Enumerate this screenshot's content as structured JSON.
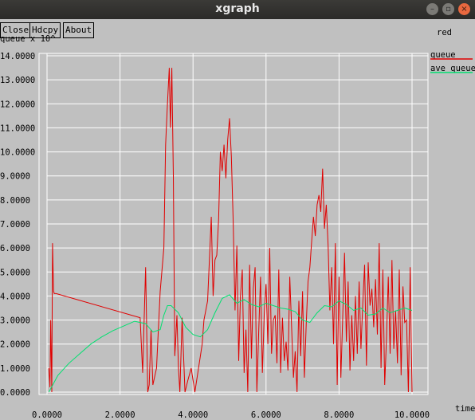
{
  "window": {
    "title": "xgraph"
  },
  "toolbar": {
    "close_label": "Close",
    "hdcpy_label": "Hdcpy",
    "about_label": "About"
  },
  "plot": {
    "title": "red",
    "y_label": "queue x 10^",
    "x_label": "time",
    "legend": [
      {
        "name": "queue",
        "color": "#e00000"
      },
      {
        "name": "ave_queue",
        "color": "#00e070"
      }
    ],
    "colors": {
      "background": "#c0c0c0",
      "grid": "#ffffff"
    }
  },
  "chart_data": {
    "type": "line",
    "xlim": [
      0,
      10
    ],
    "ylim": [
      0,
      14
    ],
    "x_ticks": [
      "0.0000",
      "2.0000",
      "4.0000",
      "6.0000",
      "8.0000",
      "10.0000"
    ],
    "y_ticks": [
      "0.0000",
      "1.0000",
      "2.0000",
      "3.0000",
      "4.0000",
      "5.0000",
      "6.0000",
      "7.0000",
      "8.0000",
      "9.0000",
      "10.0000",
      "11.0000",
      "12.0000",
      "13.0000",
      "14.0000"
    ],
    "series": [
      {
        "name": "queue",
        "color": "#e00000",
        "x": [
          0.05,
          0.08,
          0.1,
          0.13,
          0.15,
          0.18,
          0.2,
          0.22,
          0.25,
          2.55,
          2.62,
          2.7,
          2.76,
          2.8,
          2.85,
          2.9,
          3.0,
          3.1,
          3.2,
          3.25,
          3.3,
          3.35,
          3.38,
          3.42,
          3.46,
          3.5,
          3.52,
          3.56,
          3.6,
          3.64,
          3.7,
          3.78,
          3.86,
          3.95,
          4.05,
          4.15,
          4.25,
          4.3,
          4.4,
          4.5,
          4.55,
          4.6,
          4.65,
          4.7,
          4.75,
          4.8,
          4.85,
          4.9,
          4.95,
          5.0,
          5.05,
          5.1,
          5.15,
          5.2,
          5.25,
          5.3,
          5.35,
          5.4,
          5.45,
          5.5,
          5.55,
          5.6,
          5.65,
          5.7,
          5.75,
          5.8,
          5.85,
          5.9,
          5.95,
          6.0,
          6.05,
          6.1,
          6.15,
          6.2,
          6.25,
          6.3,
          6.35,
          6.4,
          6.45,
          6.5,
          6.55,
          6.6,
          6.65,
          6.7,
          6.75,
          6.8,
          6.85,
          6.9,
          6.95,
          7.0,
          7.05,
          7.1,
          7.15,
          7.2,
          7.25,
          7.3,
          7.35,
          7.4,
          7.45,
          7.5,
          7.55,
          7.6,
          7.65,
          7.7,
          7.75,
          7.8,
          7.85,
          7.9,
          7.95,
          8.0,
          8.05,
          8.1,
          8.15,
          8.2,
          8.25,
          8.3,
          8.35,
          8.4,
          8.45,
          8.5,
          8.55,
          8.6,
          8.65,
          8.7,
          8.75,
          8.8,
          8.85,
          8.9,
          8.95,
          9.0,
          9.05,
          9.1,
          9.15,
          9.2,
          9.25,
          9.3,
          9.35,
          9.4,
          9.45,
          9.5,
          9.55,
          9.6,
          9.65,
          9.7,
          9.75,
          9.8,
          9.85,
          9.9,
          9.95,
          10.0
        ],
        "y": [
          1.0,
          0.2,
          3.0,
          0.0,
          6.2,
          4.2,
          4.1,
          4.1,
          4.1,
          3.1,
          0.8,
          5.2,
          0.0,
          0.3,
          2.6,
          0.3,
          1.0,
          4.2,
          6.0,
          10.3,
          12.0,
          13.5,
          11.0,
          13.5,
          9.0,
          1.5,
          2.0,
          3.2,
          1.0,
          0.0,
          3.1,
          0.0,
          0.5,
          1.0,
          0.0,
          1.0,
          2.0,
          3.0,
          3.8,
          7.3,
          4.0,
          5.5,
          5.7,
          7.2,
          10.0,
          9.2,
          10.3,
          8.9,
          10.5,
          11.4,
          9.8,
          7.1,
          3.4,
          6.1,
          1.3,
          4.0,
          5.1,
          0.8,
          2.6,
          0.0,
          5.3,
          1.4,
          4.3,
          5.2,
          0.0,
          2.5,
          4.8,
          0.8,
          3.2,
          4.5,
          2.0,
          6.0,
          1.6,
          3.0,
          3.2,
          1.2,
          5.1,
          0.8,
          3.1,
          1.3,
          2.1,
          0.9,
          4.8,
          2.7,
          0.6,
          1.7,
          0.0,
          3.8,
          1.5,
          4.2,
          0.6,
          2.8,
          4.6,
          5.2,
          6.3,
          7.3,
          6.5,
          7.8,
          8.2,
          7.5,
          9.3,
          6.8,
          7.8,
          6.1,
          3.4,
          5.2,
          2.0,
          6.2,
          0.3,
          4.8,
          0.6,
          3.1,
          5.8,
          2.1,
          4.6,
          0.9,
          3.2,
          1.3,
          4.0,
          1.6,
          4.6,
          1.8,
          3.7,
          5.3,
          1.1,
          5.4,
          3.6,
          4.3,
          2.7,
          4.7,
          2.4,
          6.2,
          1.0,
          5.1,
          0.3,
          2.2,
          4.8,
          1.6,
          5.5,
          1.8,
          3.4,
          1.2,
          5.1,
          0.7,
          4.4,
          2.9,
          3.0,
          0.0,
          5.2,
          0.0
        ]
      },
      {
        "name": "ave_queue",
        "color": "#00e070",
        "x": [
          0.05,
          0.3,
          0.6,
          0.9,
          1.2,
          1.5,
          1.8,
          2.1,
          2.4,
          2.7,
          2.9,
          3.1,
          3.2,
          3.3,
          3.4,
          3.6,
          3.8,
          4.0,
          4.2,
          4.4,
          4.6,
          4.8,
          5.0,
          5.2,
          5.4,
          5.6,
          5.8,
          6.0,
          6.2,
          6.4,
          6.6,
          6.8,
          7.0,
          7.2,
          7.4,
          7.6,
          7.8,
          8.0,
          8.2,
          8.4,
          8.6,
          8.8,
          9.0,
          9.2,
          9.4,
          9.6,
          9.8,
          10.0
        ],
        "y": [
          0.0,
          0.7,
          1.2,
          1.6,
          2.0,
          2.3,
          2.55,
          2.75,
          2.95,
          2.85,
          2.5,
          2.6,
          3.2,
          3.6,
          3.6,
          3.3,
          2.7,
          2.4,
          2.3,
          2.6,
          3.3,
          3.9,
          4.05,
          3.7,
          3.85,
          3.65,
          3.55,
          3.7,
          3.6,
          3.5,
          3.45,
          3.35,
          3.0,
          2.9,
          3.3,
          3.6,
          3.55,
          3.8,
          3.65,
          3.4,
          3.5,
          3.2,
          3.25,
          3.5,
          3.3,
          3.4,
          3.5,
          3.4
        ]
      }
    ]
  }
}
